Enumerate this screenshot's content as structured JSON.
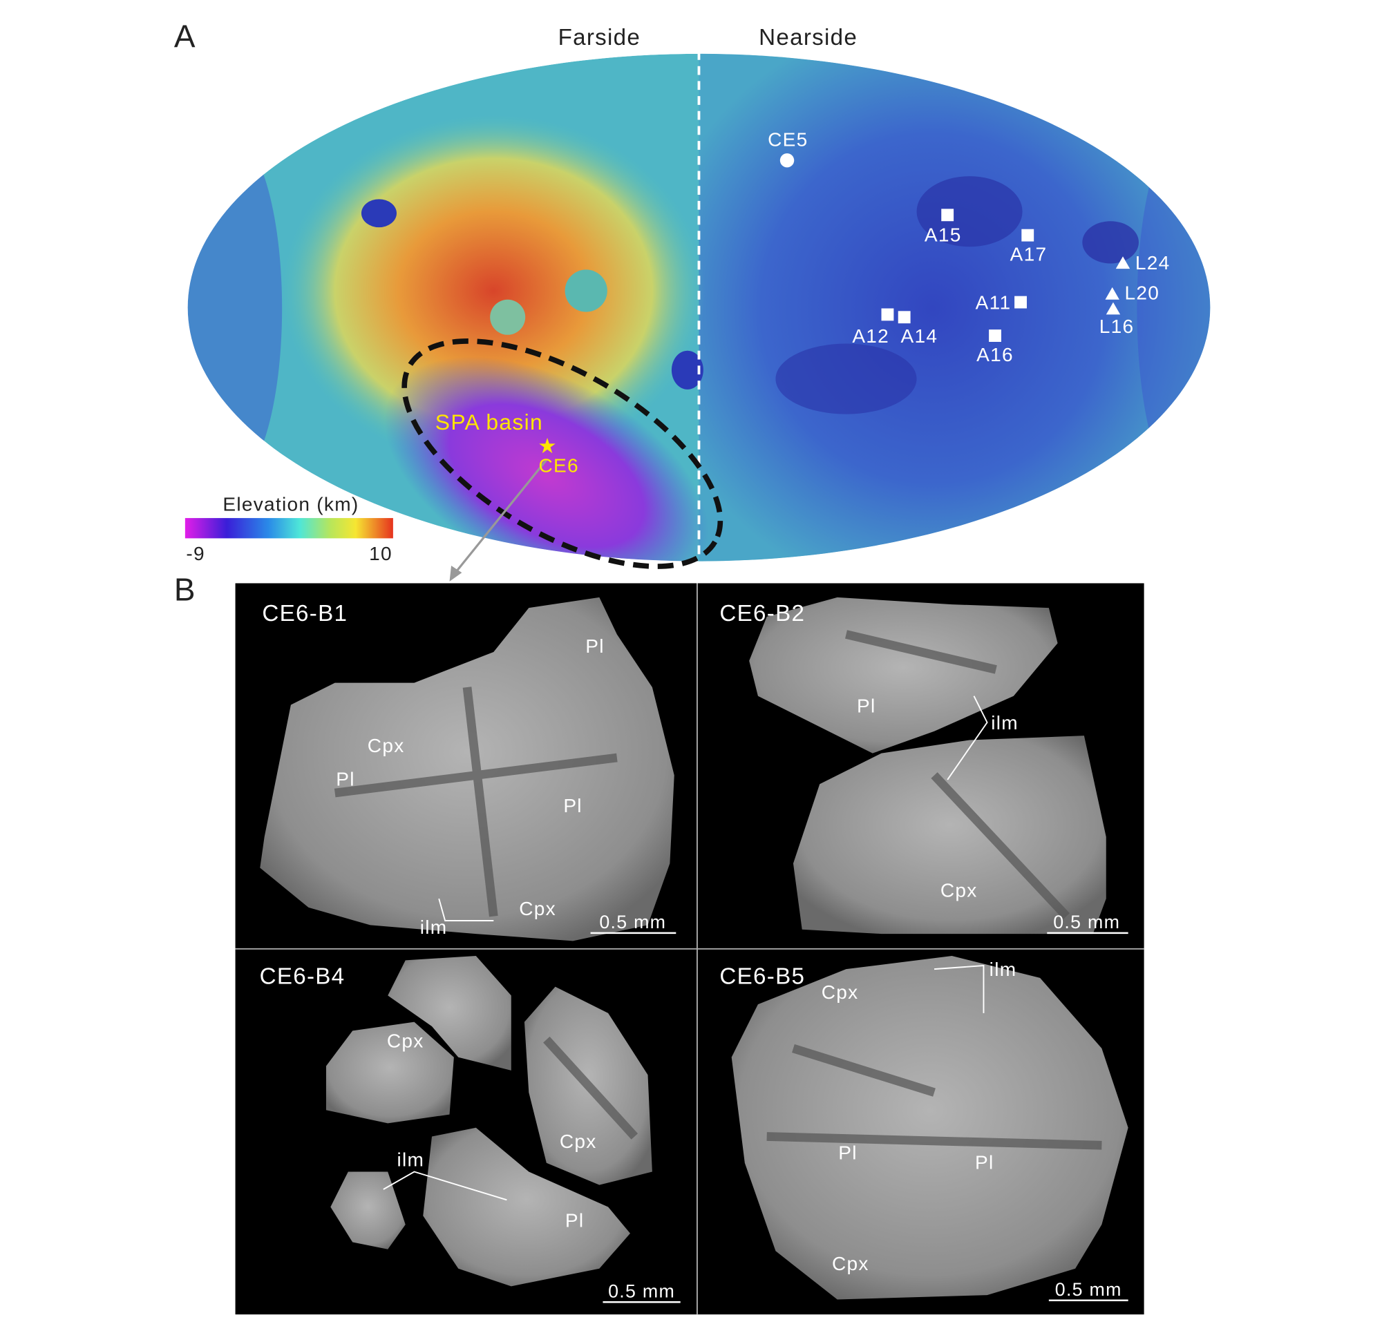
{
  "panel_a": {
    "label": "A",
    "farside": "Farside",
    "nearside": "Nearside",
    "sites": [
      "CE5",
      "A15",
      "A17",
      "L24",
      "L20",
      "A11",
      "A12",
      "A14",
      "A16",
      "L16"
    ],
    "spa_label": "SPA basin",
    "ce6_label": "CE6",
    "colorbar": {
      "title": "Elevation (km)",
      "min": -9,
      "max": 10
    }
  },
  "panel_b": {
    "label": "B",
    "images": [
      {
        "title": "CE6-B1",
        "labels": [
          "Pl",
          "Cpx",
          "Pl",
          "Pl",
          "Cpx",
          "ilm"
        ],
        "scale": "0.5 mm"
      },
      {
        "title": "CE6-B2",
        "labels": [
          "Pl",
          "ilm",
          "Cpx"
        ],
        "scale": "0.5 mm"
      },
      {
        "title": "CE6-B4",
        "labels": [
          "Cpx",
          "ilm",
          "Cpx",
          "Pl"
        ],
        "scale": "0.5 mm"
      },
      {
        "title": "CE6-B5",
        "labels": [
          "Cpx",
          "ilm",
          "Pl",
          "Pl",
          "Cpx"
        ],
        "scale": "0.5 mm"
      }
    ]
  }
}
